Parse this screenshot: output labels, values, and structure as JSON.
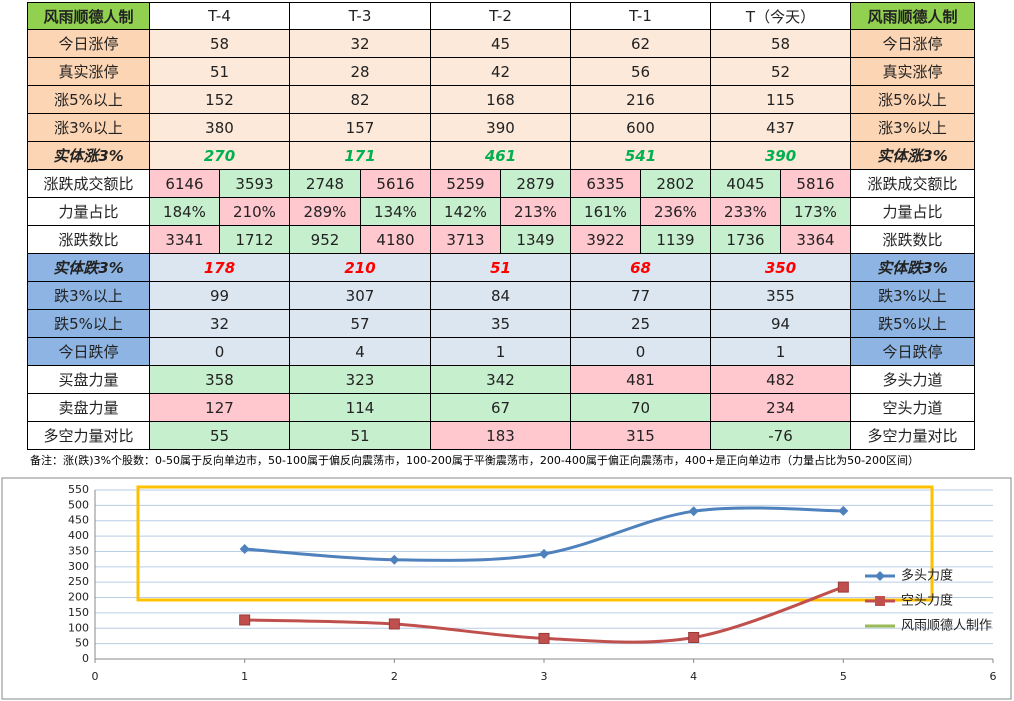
{
  "table": {
    "header": [
      "风雨顺德人制",
      "T-4",
      "T-3",
      "T-2",
      "T-1",
      "T（今天）",
      "风雨顺德人制"
    ],
    "rows": [
      {
        "label": "今日涨停",
        "cells": [
          58,
          32,
          45,
          62,
          58
        ],
        "right": "今日涨停"
      },
      {
        "label": "真实涨停",
        "cells": [
          51,
          28,
          42,
          56,
          52
        ],
        "right": "真实涨停"
      },
      {
        "label": "涨5%以上",
        "cells": [
          152,
          82,
          168,
          216,
          115
        ],
        "right": "涨5%以上"
      },
      {
        "label": "涨3%以上",
        "cells": [
          380,
          157,
          390,
          600,
          437
        ],
        "right": "涨3%以上"
      },
      {
        "label": "实体涨3%",
        "cells": [
          270,
          171,
          461,
          541,
          390
        ],
        "right": "实体涨3%"
      },
      {
        "label": "涨跌成交额比",
        "cells": [
          [
            6146,
            3593
          ],
          [
            2748,
            5616
          ],
          [
            5259,
            2879
          ],
          [
            6335,
            2802
          ],
          [
            4045,
            5816
          ]
        ],
        "right": "涨跌成交额比"
      },
      {
        "label": "力量占比",
        "cells": [
          [
            "184%",
            "210%"
          ],
          [
            "289%",
            "134%"
          ],
          [
            "142%",
            "213%"
          ],
          [
            "161%",
            "236%"
          ],
          [
            "233%",
            "173%"
          ]
        ],
        "right": "力量占比"
      },
      {
        "label": "涨跌数比",
        "cells": [
          [
            3341,
            1712
          ],
          [
            952,
            4180
          ],
          [
            3713,
            1349
          ],
          [
            3922,
            1139
          ],
          [
            1736,
            3364
          ]
        ],
        "right": "涨跌数比"
      },
      {
        "label": "实体跌3%",
        "cells": [
          178,
          210,
          51,
          68,
          350
        ],
        "right": "实体跌3%"
      },
      {
        "label": "跌3%以上",
        "cells": [
          99,
          307,
          84,
          77,
          355
        ],
        "right": "跌3%以上"
      },
      {
        "label": "跌5%以上",
        "cells": [
          32,
          57,
          35,
          25,
          94
        ],
        "right": "跌5%以上"
      },
      {
        "label": "今日跌停",
        "cells": [
          0,
          4,
          1,
          0,
          1
        ],
        "right": "今日跌停"
      },
      {
        "label": "买盘力量",
        "cells": [
          358,
          323,
          342,
          481,
          482
        ],
        "right": "多头力道"
      },
      {
        "label": "卖盘力量",
        "cells": [
          127,
          114,
          67,
          70,
          234
        ],
        "right": "空头力道"
      },
      {
        "label": "多空力量对比",
        "cells": [
          55,
          51,
          183,
          315,
          -76
        ],
        "right": "多空力量对比"
      }
    ],
    "note": "备注：涨(跌)3%个股数：0-50属于反向单边市，50-100属于偏反向震荡市，100-200属于平衡震荡市，200-400属于偏正向震荡市，400+是正向单边市（力量占比为50-200区间）"
  },
  "chart_data": {
    "type": "line",
    "x": [
      1,
      2,
      3,
      4,
      5
    ],
    "series": [
      {
        "name": "多头力度",
        "color": "#4f81bd",
        "values": [
          358,
          323,
          342,
          481,
          482
        ]
      },
      {
        "name": "空头力度",
        "color": "#c0504d",
        "values": [
          127,
          114,
          67,
          70,
          234
        ]
      },
      {
        "name": "风雨顺德人制作",
        "color": "#9bbb59",
        "values": [
          null,
          null,
          null,
          null,
          null
        ]
      }
    ],
    "xlim": [
      0,
      6
    ],
    "xticks": [
      0,
      1,
      2,
      3,
      4,
      5,
      6
    ],
    "ylim": [
      0,
      550
    ],
    "yticks": [
      0,
      50,
      100,
      150,
      200,
      250,
      300,
      350,
      400,
      450,
      500,
      550
    ],
    "grid": true,
    "legend": "right"
  }
}
